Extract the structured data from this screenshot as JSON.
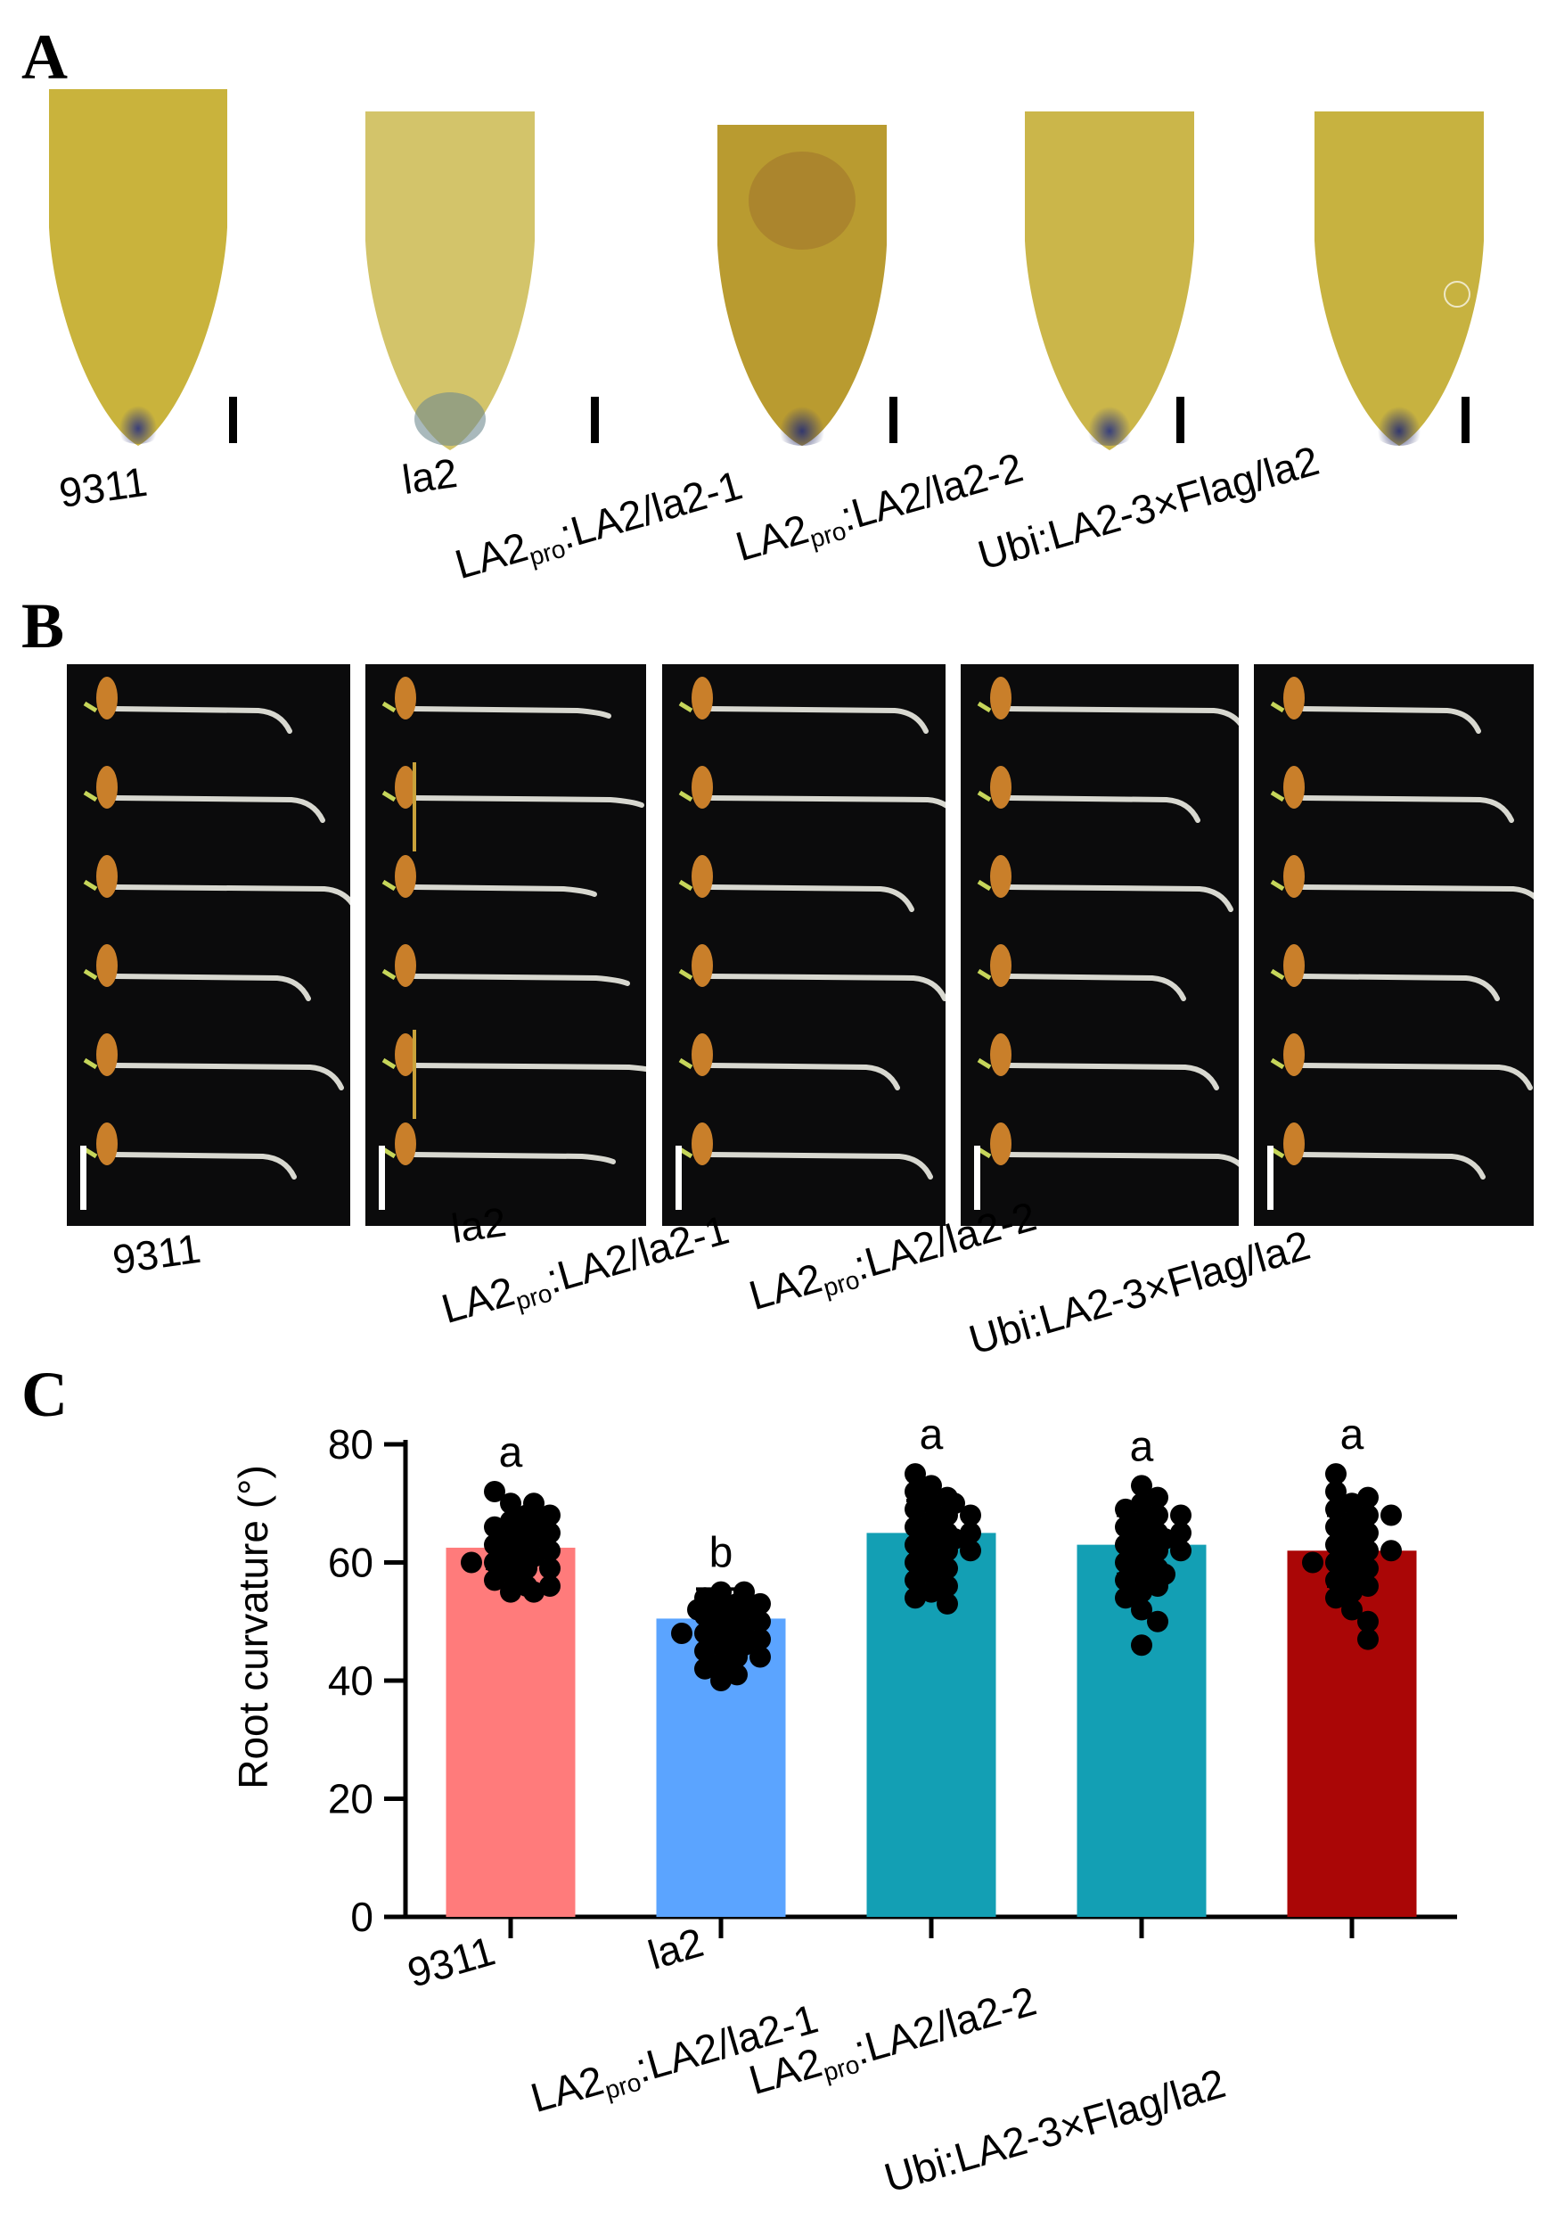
{
  "panels": {
    "a": {
      "letter": "A"
    },
    "b": {
      "letter": "B"
    },
    "c": {
      "letter": "C"
    }
  },
  "genotypes": {
    "g1": {
      "text": "9311"
    },
    "g2": {
      "text": "la2"
    },
    "g3": {
      "main": "LA2",
      "sub": "pro",
      "rest": ":LA2/la2-1"
    },
    "g4": {
      "main": "LA2",
      "sub": "pro",
      "rest": ":LA2/la2-2"
    },
    "g5": {
      "text": "Ubi:LA2-3×Flag/la2"
    }
  },
  "colors": {
    "tip_body": "#c9b33c",
    "tip_stain": "#3a3f7a",
    "seedling_bg": "#0b0b0c",
    "bar_9311": "#ff7b7b",
    "bar_la2": "#5ba4ff",
    "bar_comp": "#139fb4",
    "bar_ubi": "#aa0606"
  },
  "chart_data": {
    "type": "bar",
    "categories": [
      "9311",
      "la2",
      "LA2pro:LA2/la2-1",
      "LA2pro:LA2/la2-2",
      "Ubi:LA2-3×Flag/la2"
    ],
    "values": [
      62.5,
      50.5,
      65,
      63,
      62
    ],
    "error": [
      3.5,
      5,
      5.5,
      5,
      6
    ],
    "significance": [
      "a",
      "b",
      "a",
      "a",
      "a"
    ],
    "ylabel": "Root curvature (°)",
    "ylim": [
      0,
      80
    ],
    "yticks": [
      0,
      20,
      40,
      60,
      80
    ],
    "points": [
      [
        72,
        70,
        70,
        68,
        68,
        67,
        67,
        66,
        66,
        65,
        65,
        64,
        64,
        63,
        63,
        62,
        62,
        61,
        61,
        60,
        60,
        59,
        59,
        58,
        57,
        56,
        55,
        55,
        56,
        60
      ],
      [
        55,
        54,
        53,
        53,
        52,
        52,
        51,
        51,
        50,
        50,
        49,
        49,
        48,
        48,
        47,
        47,
        46,
        46,
        45,
        45,
        44,
        44,
        43,
        42,
        41,
        40,
        52,
        50,
        48,
        55
      ],
      [
        75,
        73,
        72,
        71,
        70,
        70,
        69,
        68,
        68,
        67,
        66,
        66,
        65,
        65,
        64,
        64,
        63,
        62,
        62,
        61,
        60,
        59,
        58,
        57,
        56,
        55,
        54,
        53,
        65,
        60
      ],
      [
        73,
        71,
        70,
        69,
        68,
        68,
        67,
        66,
        66,
        65,
        65,
        64,
        64,
        63,
        62,
        62,
        61,
        60,
        60,
        59,
        58,
        58,
        57,
        56,
        55,
        54,
        52,
        50,
        46,
        62
      ],
      [
        75,
        72,
        71,
        70,
        69,
        68,
        68,
        67,
        66,
        66,
        65,
        64,
        63,
        63,
        62,
        62,
        61,
        60,
        60,
        59,
        58,
        57,
        57,
        56,
        55,
        54,
        52,
        50,
        47,
        60
      ]
    ],
    "grid": false
  }
}
